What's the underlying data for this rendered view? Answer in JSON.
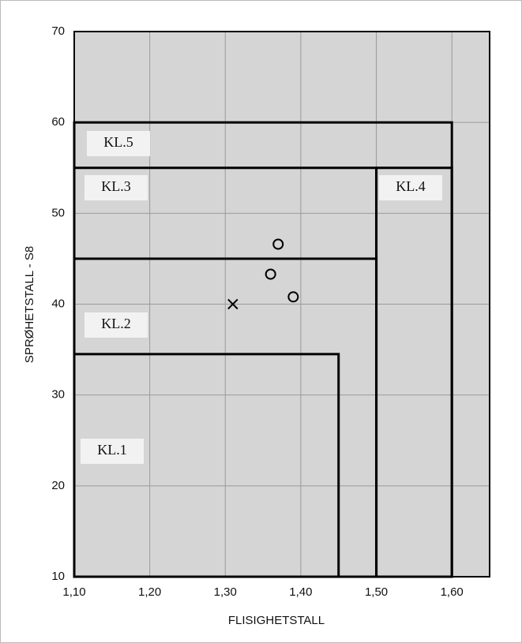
{
  "chart_data": {
    "type": "scatter",
    "xlabel": "FLISIGHETSTALL",
    "ylabel": "SPRØHETSTALL - S8",
    "xlim": [
      1.1,
      1.65
    ],
    "ylim": [
      10,
      70
    ],
    "xticks": [
      {
        "value": 1.1,
        "label": "1,10"
      },
      {
        "value": 1.2,
        "label": "1,20"
      },
      {
        "value": 1.3,
        "label": "1,30"
      },
      {
        "value": 1.4,
        "label": "1,40"
      },
      {
        "value": 1.5,
        "label": "1,50"
      },
      {
        "value": 1.6,
        "label": "1,60"
      }
    ],
    "yticks": [
      10,
      20,
      30,
      40,
      50,
      60,
      70
    ],
    "grid": true,
    "regions": [
      {
        "name": "KL.5",
        "x": [
          1.1,
          1.6
        ],
        "y": [
          10,
          60
        ]
      },
      {
        "name": "KL.3",
        "x": [
          1.1,
          1.5
        ],
        "y": [
          10,
          55
        ]
      },
      {
        "name": "KL.4",
        "x": [
          1.5,
          1.6
        ],
        "y": [
          10,
          55
        ]
      },
      {
        "name": "KL.2",
        "x": [
          1.1,
          1.5
        ],
        "y": [
          10,
          45
        ]
      },
      {
        "name": "KL.1",
        "x": [
          1.1,
          1.45
        ],
        "y": [
          10,
          34.5
        ]
      }
    ],
    "series": [
      {
        "marker": "o",
        "color": "#000000",
        "x": [
          1.37,
          1.36,
          1.39
        ],
        "values": [
          46.6,
          43.3,
          40.8
        ]
      },
      {
        "marker": "x",
        "color": "#000000",
        "x": [
          1.31
        ],
        "values": [
          40
        ]
      }
    ]
  }
}
